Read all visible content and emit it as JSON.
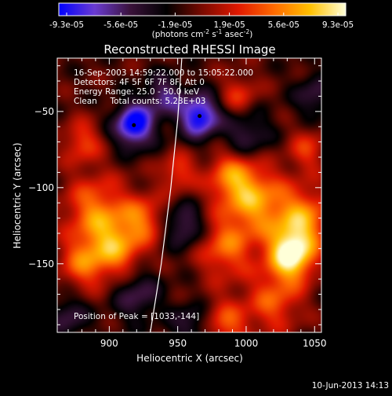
{
  "colors": {
    "background": "#000000",
    "foreground": "#ffffff",
    "colormap": [
      "#0000ff",
      "#6a3bd1",
      "#3a123a",
      "#000000",
      "#7a0a00",
      "#e01800",
      "#ff6a00",
      "#ffc000",
      "#ffffd8"
    ]
  },
  "colorbar": {
    "ticks": [
      "-9.3e-05",
      "-5.6e-05",
      "-1.9e-05",
      "1.9e-05",
      "5.6e-05",
      "9.3e-05"
    ],
    "unit_parts": [
      "(photons cm",
      "-2",
      " s",
      "-1",
      " asec",
      "-2",
      ")"
    ]
  },
  "chart_data": {
    "type": "heatmap",
    "title": "Reconstructed RHESSI Image",
    "xlabel": "Heliocentric X (arcsec)",
    "ylabel": "Heliocentric Y (arcsec)",
    "xlim": [
      862,
      1055
    ],
    "ylim": [
      -195,
      -15
    ],
    "x_ticks": [
      900,
      950,
      1000,
      1050
    ],
    "y_ticks": [
      -50,
      -100,
      -150
    ],
    "color_range": [
      -9.3e-05,
      9.3e-05
    ],
    "info_lines": [
      "16-Sep-2003 14:59:22.000 to 15:05:22.000",
      "Detectors: 4F 5F 6F 7F 8F, Att 0",
      "Energy Range: 25.0 - 50.0 keV",
      "Clean     Total counts: 5.23E+03"
    ],
    "peak_label": "Position of Peak = [1033,-144]",
    "peak": [
      1033,
      -144
    ],
    "markers": [
      [
        918,
        -59
      ],
      [
        966,
        -53
      ]
    ],
    "limb_curve": [
      [
        953,
        -15
      ],
      [
        950,
        -55
      ],
      [
        945,
        -100
      ],
      [
        938,
        -150
      ],
      [
        930,
        -195
      ]
    ],
    "sources": [
      {
        "x": 1033,
        "y": -144,
        "amp": 1.0,
        "sigma": 12
      },
      {
        "x": 1008,
        "y": -110,
        "amp": 0.6,
        "sigma": 16
      },
      {
        "x": 990,
        "y": -93,
        "amp": 0.55,
        "sigma": 13
      },
      {
        "x": 1042,
        "y": -120,
        "amp": 0.6,
        "sigma": 14
      },
      {
        "x": 985,
        "y": -140,
        "amp": 0.5,
        "sigma": 14
      },
      {
        "x": 1020,
        "y": -175,
        "amp": 0.45,
        "sigma": 14
      },
      {
        "x": 985,
        "y": -190,
        "amp": 0.45,
        "sigma": 12
      },
      {
        "x": 890,
        "y": -115,
        "amp": 0.55,
        "sigma": 16
      },
      {
        "x": 905,
        "y": -140,
        "amp": 0.6,
        "sigma": 14
      },
      {
        "x": 880,
        "y": -150,
        "amp": 0.45,
        "sigma": 12
      },
      {
        "x": 925,
        "y": -120,
        "amp": 0.45,
        "sigma": 11
      },
      {
        "x": 880,
        "y": -70,
        "amp": 0.4,
        "sigma": 10
      },
      {
        "x": 950,
        "y": -90,
        "amp": 0.4,
        "sigma": 9
      },
      {
        "x": 995,
        "y": -40,
        "amp": 0.35,
        "sigma": 10
      },
      {
        "x": 1045,
        "y": -75,
        "amp": 0.35,
        "sigma": 10
      },
      {
        "x": 918,
        "y": -59,
        "amp": -0.9,
        "sigma": 10
      },
      {
        "x": 966,
        "y": -53,
        "amp": -0.85,
        "sigma": 10
      },
      {
        "x": 940,
        "y": -40,
        "amp": -0.45,
        "sigma": 10
      },
      {
        "x": 1000,
        "y": -65,
        "amp": -0.4,
        "sigma": 12
      },
      {
        "x": 955,
        "y": -125,
        "amp": -0.45,
        "sigma": 10
      },
      {
        "x": 920,
        "y": -170,
        "amp": -0.4,
        "sigma": 12
      },
      {
        "x": 870,
        "y": -185,
        "amp": -0.35,
        "sigma": 10
      },
      {
        "x": 1050,
        "y": -40,
        "amp": -0.35,
        "sigma": 10
      },
      {
        "x": 960,
        "y": -190,
        "amp": -0.35,
        "sigma": 10
      }
    ]
  },
  "footer": {
    "date": "10-Jun-2013 14:13"
  }
}
